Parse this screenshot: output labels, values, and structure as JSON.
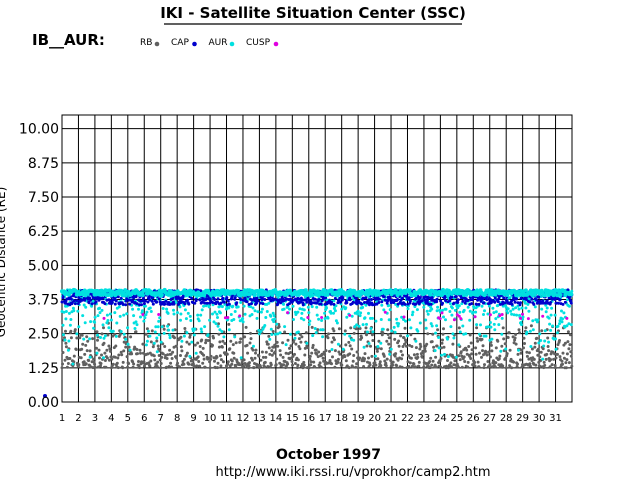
{
  "chart_data": {
    "type": "scatter",
    "title": "IKI - Satellite Situation Center (SSC)",
    "subtitle": "IB__AUR:",
    "ylabel": "Geocentric Distance (RE)",
    "xlabel": "October 1997",
    "month": "October",
    "year": "1997",
    "url": "http://www.iki.rssi.ru/vprokhor/camp2.htm",
    "xlim": [
      1,
      32
    ],
    "ylim": [
      0,
      10.5
    ],
    "x_ticks": [
      "1",
      "2",
      "3",
      "4",
      "5",
      "6",
      "7",
      "8",
      "9",
      "10",
      "11",
      "12",
      "13",
      "14",
      "15",
      "16",
      "17",
      "18",
      "19",
      "20",
      "21",
      "22",
      "23",
      "24",
      "25",
      "26",
      "27",
      "28",
      "29",
      "30",
      "31"
    ],
    "y_ticks": [
      "0.00",
      "1.25",
      "2.50",
      "3.75",
      "5.00",
      "6.25",
      "7.50",
      "8.75",
      "10.00"
    ],
    "grid": true,
    "legend_position": "top",
    "series": [
      {
        "name": "RB",
        "color": "#606060",
        "range": [
          1.25,
          2.9
        ],
        "x": [],
        "y": []
      },
      {
        "name": "CAP",
        "color": "#0000cc",
        "range": [
          3.2,
          4.1
        ],
        "x": [],
        "y": []
      },
      {
        "name": "AUR",
        "color": "#00e0e0",
        "range": [
          1.25,
          4.1
        ],
        "x": [],
        "y": []
      },
      {
        "name": "CUSP",
        "color": "#e000e0",
        "range": [
          3.0,
          3.3
        ],
        "x": [],
        "y": []
      }
    ]
  }
}
